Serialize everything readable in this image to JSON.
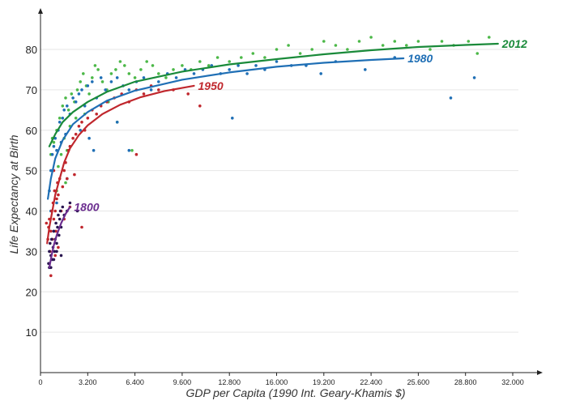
{
  "chart_data": {
    "type": "scatter",
    "xlabel": "GDP per Capita (1990 Int. Geary-Khamis $)",
    "ylabel": "Life Expectancy at Birth",
    "xlim": [
      0,
      34000
    ],
    "ylim": [
      0,
      90
    ],
    "xticks": [
      0,
      3200,
      6400,
      9600,
      12800,
      16000,
      19200,
      22400,
      25600,
      28800,
      32000
    ],
    "xtick_labels": [
      "0",
      "3.200",
      "6.400",
      "9.600",
      "12.800",
      "16.000",
      "19.200",
      "22.400",
      "25.600",
      "28.800",
      "32.000"
    ],
    "yticks": [
      10,
      20,
      30,
      40,
      50,
      60,
      70,
      80
    ],
    "ytick_labels": [
      "10",
      "20",
      "30",
      "40",
      "50",
      "60",
      "70",
      "80"
    ],
    "grid": true,
    "series": [
      {
        "name": "2012",
        "color": "#1a8a3a",
        "point_color": "#4cb848",
        "fit": [
          [
            600,
            56
          ],
          [
            1000,
            59
          ],
          [
            1500,
            62
          ],
          [
            2200,
            64.5
          ],
          [
            3200,
            67
          ],
          [
            4500,
            69.5
          ],
          [
            6400,
            72
          ],
          [
            9600,
            74.5
          ],
          [
            12800,
            76.3
          ],
          [
            16000,
            77.6
          ],
          [
            19200,
            78.8
          ],
          [
            22400,
            79.8
          ],
          [
            25600,
            80.6
          ],
          [
            28800,
            81.1
          ],
          [
            31000,
            81.4
          ]
        ],
        "points": [
          [
            900,
            57
          ],
          [
            1100,
            60
          ],
          [
            1300,
            63
          ],
          [
            1500,
            66
          ],
          [
            1700,
            68
          ],
          [
            1900,
            65
          ],
          [
            2100,
            69
          ],
          [
            2300,
            67
          ],
          [
            2500,
            70
          ],
          [
            2700,
            72
          ],
          [
            2900,
            74
          ],
          [
            3100,
            71
          ],
          [
            3300,
            69
          ],
          [
            3500,
            73
          ],
          [
            3700,
            76
          ],
          [
            3900,
            75
          ],
          [
            4200,
            72
          ],
          [
            4500,
            70
          ],
          [
            4800,
            74
          ],
          [
            5100,
            75
          ],
          [
            5400,
            77
          ],
          [
            5700,
            76
          ],
          [
            6000,
            74
          ],
          [
            6400,
            73
          ],
          [
            6800,
            75
          ],
          [
            7200,
            77
          ],
          [
            7600,
            76
          ],
          [
            8000,
            74
          ],
          [
            8500,
            73
          ],
          [
            9000,
            75
          ],
          [
            9600,
            76
          ],
          [
            10200,
            75
          ],
          [
            10800,
            77
          ],
          [
            11400,
            76
          ],
          [
            12000,
            78
          ],
          [
            12800,
            77
          ],
          [
            13600,
            78
          ],
          [
            14400,
            79
          ],
          [
            15200,
            78
          ],
          [
            16000,
            80
          ],
          [
            16800,
            81
          ],
          [
            17600,
            79
          ],
          [
            18400,
            80
          ],
          [
            19200,
            82
          ],
          [
            20000,
            81
          ],
          [
            20800,
            80
          ],
          [
            21600,
            82
          ],
          [
            22400,
            83
          ],
          [
            23200,
            81
          ],
          [
            24000,
            82
          ],
          [
            24800,
            81
          ],
          [
            25600,
            82
          ],
          [
            26400,
            80
          ],
          [
            27200,
            82
          ],
          [
            28000,
            81
          ],
          [
            29000,
            82
          ],
          [
            29600,
            79
          ],
          [
            30400,
            83
          ],
          [
            1200,
            51
          ],
          [
            1400,
            54
          ],
          [
            1600,
            58
          ],
          [
            2400,
            63
          ],
          [
            3000,
            64
          ],
          [
            1800,
            55
          ],
          [
            5200,
            62
          ],
          [
            6200,
            55
          ],
          [
            4600,
            67
          ],
          [
            700,
            54
          ],
          [
            800,
            58
          ],
          [
            2000,
            61
          ],
          [
            1100,
            45
          ],
          [
            1700,
            47
          ]
        ]
      },
      {
        "name": "1980",
        "color": "#1f6fb5",
        "point_color": "#1f6fb5",
        "fit": [
          [
            500,
            43
          ],
          [
            700,
            48
          ],
          [
            1000,
            53
          ],
          [
            1500,
            57.5
          ],
          [
            2200,
            61.5
          ],
          [
            3200,
            64.5
          ],
          [
            4500,
            67.3
          ],
          [
            6400,
            69.8
          ],
          [
            9600,
            72.5
          ],
          [
            12800,
            74.3
          ],
          [
            16000,
            75.7
          ],
          [
            19200,
            76.7
          ],
          [
            22400,
            77.4
          ],
          [
            24600,
            77.8
          ]
        ],
        "points": [
          [
            600,
            45
          ],
          [
            700,
            50
          ],
          [
            800,
            54
          ],
          [
            900,
            56
          ],
          [
            1000,
            58
          ],
          [
            1100,
            55
          ],
          [
            1200,
            60
          ],
          [
            1300,
            62
          ],
          [
            1400,
            57
          ],
          [
            1500,
            63
          ],
          [
            1600,
            65
          ],
          [
            1700,
            59
          ],
          [
            1800,
            66
          ],
          [
            2000,
            64
          ],
          [
            2200,
            68
          ],
          [
            2400,
            67
          ],
          [
            2600,
            69
          ],
          [
            2800,
            70
          ],
          [
            3000,
            66
          ],
          [
            3200,
            71
          ],
          [
            3500,
            72
          ],
          [
            3800,
            68
          ],
          [
            4100,
            73
          ],
          [
            4400,
            70
          ],
          [
            4800,
            72
          ],
          [
            5200,
            73
          ],
          [
            5600,
            71
          ],
          [
            6000,
            70
          ],
          [
            6500,
            72
          ],
          [
            7000,
            73
          ],
          [
            7500,
            70
          ],
          [
            8000,
            72
          ],
          [
            8600,
            74
          ],
          [
            9200,
            73
          ],
          [
            9800,
            75
          ],
          [
            10400,
            74
          ],
          [
            11000,
            75
          ],
          [
            11600,
            76
          ],
          [
            12200,
            74
          ],
          [
            12800,
            75
          ],
          [
            13400,
            76
          ],
          [
            14000,
            74
          ],
          [
            14600,
            76
          ],
          [
            15200,
            75
          ],
          [
            16000,
            77
          ],
          [
            17000,
            76
          ],
          [
            18000,
            76
          ],
          [
            19000,
            74
          ],
          [
            20000,
            77
          ],
          [
            22000,
            75
          ],
          [
            24000,
            78
          ],
          [
            27800,
            68
          ],
          [
            29400,
            73
          ],
          [
            13000,
            63
          ],
          [
            2700,
            60
          ],
          [
            3300,
            58
          ],
          [
            3600,
            55
          ],
          [
            6000,
            55
          ],
          [
            5200,
            62
          ],
          [
            1800,
            48
          ],
          [
            700,
            40
          ],
          [
            900,
            35
          ],
          [
            1100,
            42
          ]
        ]
      },
      {
        "name": "1950",
        "color": "#c0272d",
        "point_color": "#c0272d",
        "fit": [
          [
            450,
            32
          ],
          [
            600,
            36
          ],
          [
            800,
            40
          ],
          [
            1000,
            44
          ],
          [
            1300,
            48
          ],
          [
            1600,
            52
          ],
          [
            2000,
            55.5
          ],
          [
            2600,
            58.8
          ],
          [
            3200,
            61.2
          ],
          [
            4200,
            64
          ],
          [
            5400,
            66.3
          ],
          [
            6800,
            68.2
          ],
          [
            8400,
            69.7
          ],
          [
            10400,
            71
          ]
        ],
        "points": [
          [
            500,
            33
          ],
          [
            550,
            36
          ],
          [
            600,
            38
          ],
          [
            650,
            30
          ],
          [
            700,
            35
          ],
          [
            750,
            40
          ],
          [
            800,
            33
          ],
          [
            850,
            42
          ],
          [
            900,
            38
          ],
          [
            950,
            45
          ],
          [
            1000,
            40
          ],
          [
            1050,
            35
          ],
          [
            1100,
            43
          ],
          [
            1150,
            47
          ],
          [
            1200,
            44
          ],
          [
            1300,
            48
          ],
          [
            1400,
            40
          ],
          [
            1500,
            46
          ],
          [
            1600,
            50
          ],
          [
            1700,
            52
          ],
          [
            1800,
            48
          ],
          [
            1900,
            55
          ],
          [
            2000,
            56
          ],
          [
            2200,
            58
          ],
          [
            2400,
            59
          ],
          [
            2600,
            61
          ],
          [
            2800,
            62
          ],
          [
            3000,
            60
          ],
          [
            3200,
            63
          ],
          [
            3500,
            65
          ],
          [
            3800,
            64
          ],
          [
            4100,
            66
          ],
          [
            4500,
            67
          ],
          [
            5000,
            68
          ],
          [
            5500,
            69
          ],
          [
            6000,
            67
          ],
          [
            6500,
            70
          ],
          [
            7000,
            69
          ],
          [
            7500,
            71
          ],
          [
            8000,
            70
          ],
          [
            9000,
            70
          ],
          [
            10000,
            69
          ],
          [
            10800,
            66
          ],
          [
            2800,
            36
          ],
          [
            2300,
            49
          ],
          [
            700,
            24
          ],
          [
            600,
            27
          ],
          [
            1000,
            29
          ],
          [
            1200,
            31
          ],
          [
            1600,
            38
          ],
          [
            2000,
            41
          ],
          [
            6500,
            54
          ],
          [
            400,
            37
          ],
          [
            900,
            50
          ]
        ]
      },
      {
        "name": "1800",
        "color": "#6b2d8f",
        "point_color": "#2a1650",
        "fit": [
          [
            600,
            26
          ],
          [
            750,
            29
          ],
          [
            900,
            31.5
          ],
          [
            1100,
            34
          ],
          [
            1400,
            37
          ],
          [
            1700,
            39.3
          ],
          [
            2000,
            41
          ]
        ],
        "points": [
          [
            550,
            27
          ],
          [
            600,
            30
          ],
          [
            650,
            32
          ],
          [
            700,
            29
          ],
          [
            750,
            33
          ],
          [
            800,
            28
          ],
          [
            850,
            31
          ],
          [
            900,
            35
          ],
          [
            950,
            30
          ],
          [
            1000,
            33
          ],
          [
            1050,
            37
          ],
          [
            1100,
            32
          ],
          [
            1150,
            36
          ],
          [
            1200,
            39
          ],
          [
            1250,
            34
          ],
          [
            1300,
            38
          ],
          [
            1350,
            40
          ],
          [
            1400,
            36
          ],
          [
            1500,
            41
          ],
          [
            1600,
            39
          ],
          [
            1800,
            40
          ],
          [
            2000,
            42
          ],
          [
            2500,
            40
          ],
          [
            600,
            26
          ],
          [
            700,
            26
          ],
          [
            900,
            28
          ],
          [
            1100,
            30
          ],
          [
            1400,
            29
          ]
        ]
      }
    ]
  }
}
